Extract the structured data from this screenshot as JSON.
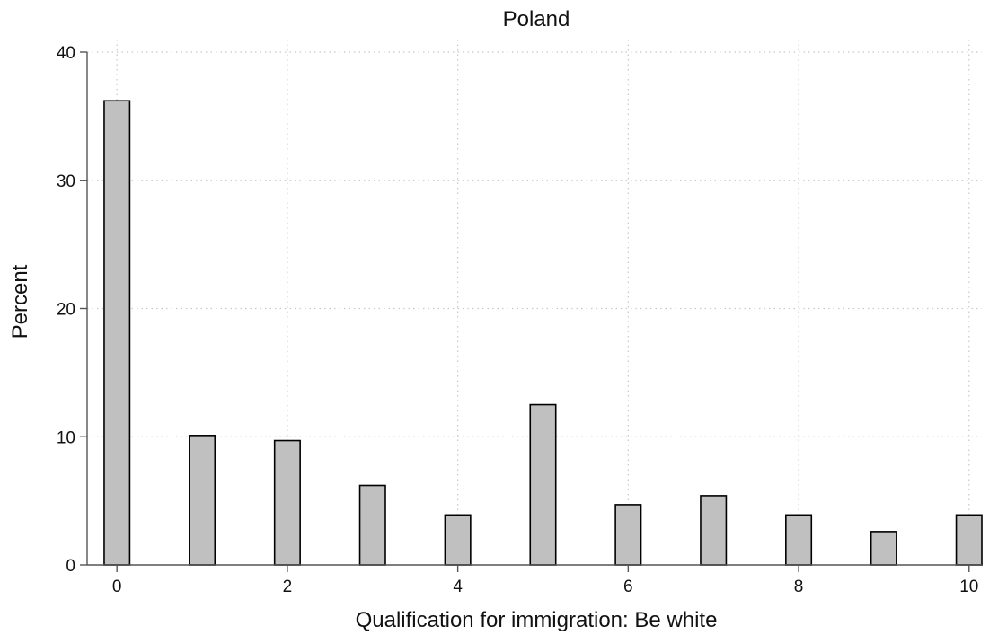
{
  "chart_data": {
    "type": "bar",
    "title": "Poland",
    "xlabel": "Qualification for immigration: Be white",
    "ylabel": "Percent",
    "x": [
      0,
      1,
      2,
      3,
      4,
      5,
      6,
      7,
      8,
      9,
      10
    ],
    "values": [
      36.2,
      10.1,
      9.7,
      6.2,
      3.9,
      12.5,
      4.7,
      5.4,
      3.9,
      2.6,
      3.9
    ],
    "xlim": [
      -0.35,
      10.15
    ],
    "ylim": [
      0,
      40
    ],
    "xticks": [
      0,
      2,
      4,
      6,
      8,
      10
    ],
    "yticks": [
      0,
      10,
      20,
      30,
      40
    ],
    "grid": true,
    "colors": {
      "bar_fill": "#c0c0c0",
      "bar_stroke": "#000000",
      "grid": "#c8c8c8",
      "axis": "#555555"
    }
  }
}
